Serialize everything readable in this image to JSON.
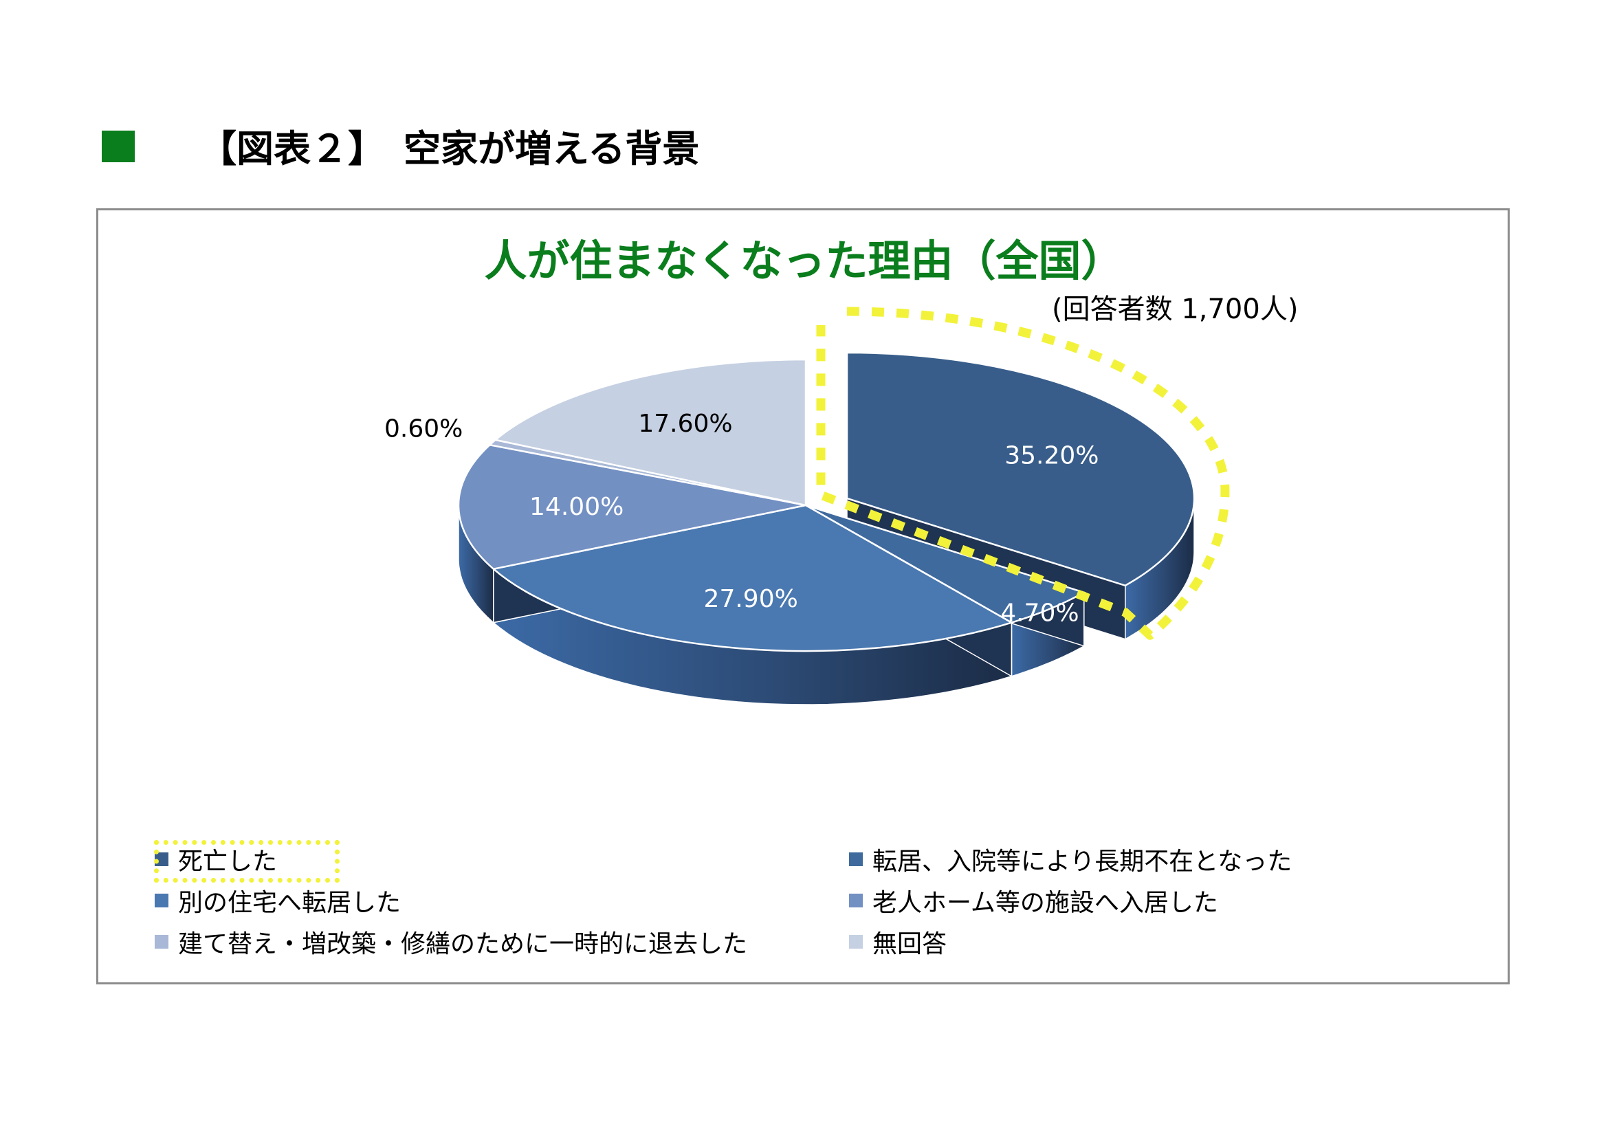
{
  "header": {
    "title": "【図表２】　空家が増える背景",
    "marker_color": "#0a7d1c"
  },
  "chart_data": {
    "type": "pie",
    "title": "人が住まなくなった理由（全国）",
    "title_color": "#0a7d1c",
    "subtitle": "(回答者数 1,700人)",
    "highlight_color": "#f2f23a",
    "categories": [
      "死亡した",
      "転居、入院等により長期不在となった",
      "別の住宅へ転居した",
      "老人ホーム等の施設へ入居した",
      "建て替え・増改築・修繕のために一時的に退去した",
      "無回答"
    ],
    "values": [
      35.2,
      4.7,
      27.9,
      14.0,
      0.6,
      17.6
    ],
    "labels": [
      "35.20%",
      "4.70%",
      "27.90%",
      "14.00%",
      "0.60%",
      "17.60%"
    ],
    "colors": [
      "#385d8a",
      "#3f6a9e",
      "#4a78b0",
      "#7390c3",
      "#a8b8d6",
      "#c5d0e2"
    ],
    "exploded": "死亡した",
    "highlighted": "死亡した",
    "legend": "bottom"
  }
}
